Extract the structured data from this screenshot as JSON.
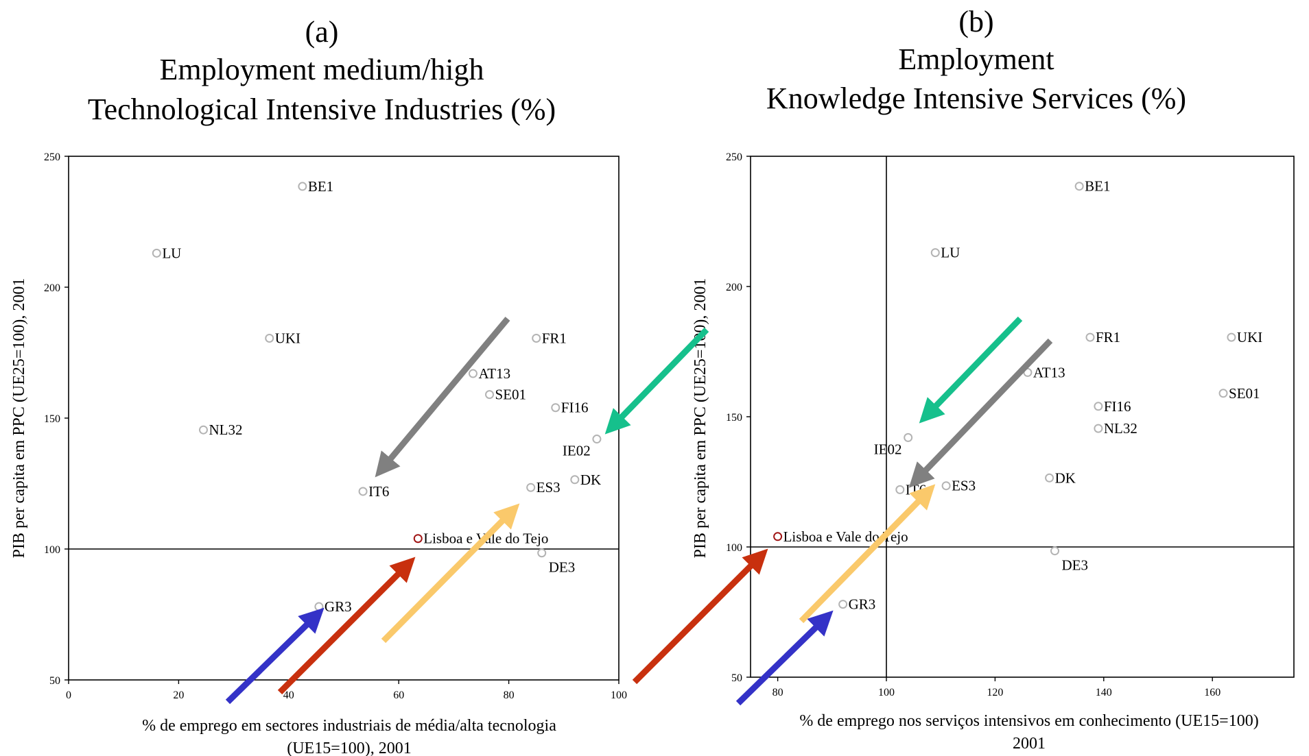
{
  "chart_data": [
    {
      "type": "scatter",
      "panel_label": "(a)",
      "title_lines": [
        "Employment medium/high",
        "Technological Intensive Industries (%)"
      ],
      "xlabel_lines": [
        "% de emprego em sectores industriais de média/alta tecnologia",
        "(UE15=100), 2001"
      ],
      "ylabel": "PIB per capita em PPC (UE25=100), 2001",
      "xlim": [
        0,
        100
      ],
      "ylim": [
        50,
        250
      ],
      "xticks": [
        0,
        20,
        40,
        60,
        80,
        100
      ],
      "yticks": [
        50,
        100,
        150,
        200,
        250
      ],
      "reference_lines": {
        "y": 100
      },
      "points": [
        {
          "label": "BE1",
          "x": 42.5,
          "y": 238.5
        },
        {
          "label": "LU",
          "x": 16,
          "y": 213
        },
        {
          "label": "UKI",
          "x": 36.5,
          "y": 180.5
        },
        {
          "label": "FR1",
          "x": 85,
          "y": 180.5
        },
        {
          "label": "AT13",
          "x": 73.5,
          "y": 167
        },
        {
          "label": "SE01",
          "x": 76.5,
          "y": 159
        },
        {
          "label": "FI16",
          "x": 88.5,
          "y": 154
        },
        {
          "label": "NL32",
          "x": 24.5,
          "y": 145.5
        },
        {
          "label": "IE02",
          "x": 96,
          "y": 142
        },
        {
          "label": "DK",
          "x": 92,
          "y": 126.5
        },
        {
          "label": "ES3",
          "x": 84,
          "y": 123.5
        },
        {
          "label": "IT6",
          "x": 53.5,
          "y": 122
        },
        {
          "label": "Lisboa e Vale do Tejo",
          "x": 63.5,
          "y": 104,
          "highlight": true
        },
        {
          "label": "DE3",
          "x": 86,
          "y": 98.5
        },
        {
          "label": "GR3",
          "x": 45.5,
          "y": 78
        }
      ]
    },
    {
      "type": "scatter",
      "panel_label": "(b)",
      "title_lines": [
        "Employment",
        "Knowledge Intensive Services (%)"
      ],
      "xlabel_lines": [
        "% de emprego nos serviços intensivos em conhecimento (UE15=100)",
        "2001"
      ],
      "ylabel": "PIB per capita em PPC (UE25=100), 2001",
      "xlim": [
        75,
        175
      ],
      "ylim": [
        50,
        250
      ],
      "xticks": [
        80,
        100,
        120,
        140,
        160
      ],
      "yticks": [
        50,
        100,
        150,
        200,
        250
      ],
      "reference_lines": {
        "x": 100,
        "y": 100
      },
      "points": [
        {
          "label": "BE1",
          "x": 135.5,
          "y": 238.5
        },
        {
          "label": "LU",
          "x": 109,
          "y": 213
        },
        {
          "label": "FR1",
          "x": 137.5,
          "y": 180.5
        },
        {
          "label": "UKI",
          "x": 163.5,
          "y": 180.5
        },
        {
          "label": "AT13",
          "x": 126,
          "y": 167
        },
        {
          "label": "SE01",
          "x": 162,
          "y": 159
        },
        {
          "label": "FI16",
          "x": 139,
          "y": 154
        },
        {
          "label": "NL32",
          "x": 139,
          "y": 145.5
        },
        {
          "label": "IE02",
          "x": 104,
          "y": 142
        },
        {
          "label": "DK",
          "x": 130,
          "y": 126.5
        },
        {
          "label": "ES3",
          "x": 111,
          "y": 123.5
        },
        {
          "label": "IT6",
          "x": 102.5,
          "y": 122
        },
        {
          "label": "Lisboa e Vale do Tejo",
          "x": 80,
          "y": 104,
          "highlight": true
        },
        {
          "label": "DE3",
          "x": 131,
          "y": 98.5
        },
        {
          "label": "GR3",
          "x": 92,
          "y": 78
        }
      ]
    }
  ],
  "colors": {
    "point_normal": "#b3b3b3",
    "point_highlight": "#a01515",
    "arrow_blue": "#3432c7",
    "arrow_red": "#c8300e",
    "arrow_yellow": "#fac96b",
    "arrow_gray": "#808080",
    "arrow_teal": "#16c08c"
  }
}
